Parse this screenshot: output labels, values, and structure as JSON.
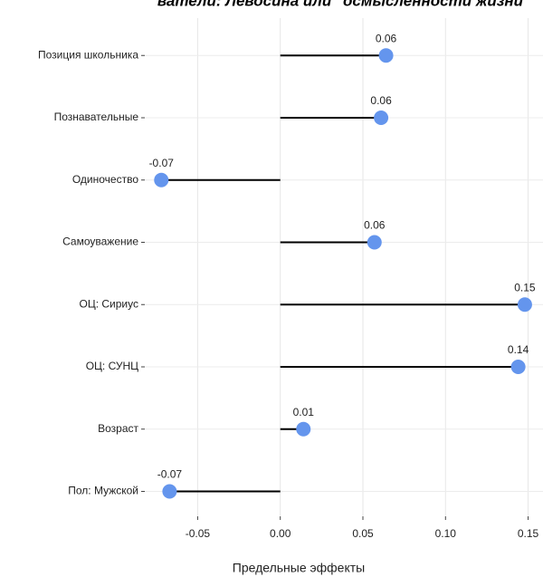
{
  "chart_data": {
    "type": "lollipop",
    "title": "ватели: Левосина или \"осмысленности жизни\"",
    "x_label": "Предельные эффекты",
    "categories": [
      "Позиция школьника",
      "Познавательные",
      "Одиночество",
      "Самоуважение",
      "ОЦ: Сириус",
      "ОЦ: СУНЦ",
      "Возраст",
      "Пол: Мужской"
    ],
    "values": [
      0.064,
      0.061,
      -0.072,
      0.057,
      0.148,
      0.144,
      0.014,
      -0.067
    ],
    "value_labels": [
      "0.06",
      "0.06",
      "-0.07",
      "0.06",
      "0.15",
      "0.14",
      "0.01",
      "-0.07"
    ],
    "color": "#6495ed",
    "xlim": [
      -0.082,
      0.159
    ],
    "xticks": [
      {
        "value": -0.05,
        "label": "-0.05"
      },
      {
        "value": 0,
        "label": "0.00"
      },
      {
        "value": 0.05,
        "label": "0.05"
      },
      {
        "value": 0.1,
        "label": "0.10"
      },
      {
        "value": 0.15,
        "label": "0.15"
      }
    ],
    "grid": true
  }
}
